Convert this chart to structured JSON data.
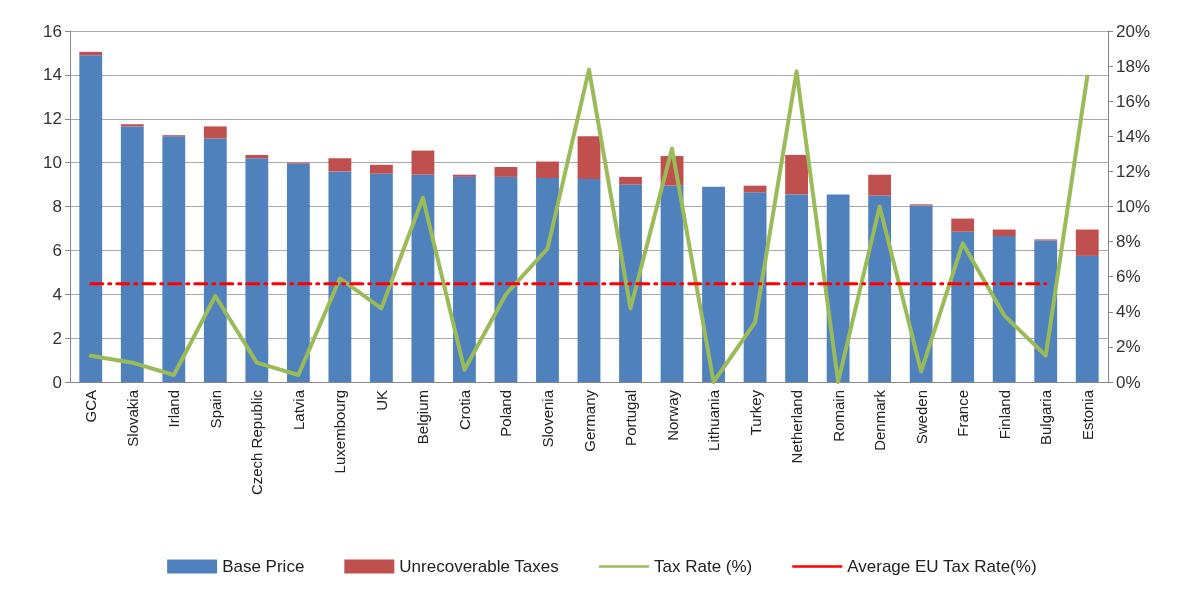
{
  "chart_data": {
    "type": "bar",
    "stacked": true,
    "categories": [
      "GCA",
      "Slovakia",
      "Irland",
      "Spain",
      "Czech Republic",
      "Latvia",
      "Luxembourg",
      "UK",
      "Belgium",
      "Crotia",
      "Poland",
      "Slovenia",
      "Germany",
      "Portugal",
      "Norway",
      "Lithuania",
      "Turkey",
      "Netherland",
      "Romain",
      "Denmark",
      "Sweden",
      "France",
      "Finland",
      "Bulgaria",
      "Estonia"
    ],
    "series": [
      {
        "name": "Base Price",
        "color": "#4f81bd",
        "values": [
          14.9,
          11.65,
          11.2,
          11.1,
          10.2,
          9.95,
          9.6,
          9.5,
          9.45,
          9.35,
          9.35,
          9.3,
          9.25,
          9.0,
          8.95,
          8.9,
          8.65,
          8.55,
          8.55,
          8.5,
          8.05,
          6.85,
          6.65,
          6.45,
          5.75
        ]
      },
      {
        "name": "Unrecoverable Taxes",
        "color": "#c0504d",
        "values": [
          0.15,
          0.1,
          0.05,
          0.55,
          0.15,
          0.05,
          0.6,
          0.4,
          1.1,
          0.1,
          0.45,
          0.75,
          1.95,
          0.35,
          1.35,
          0,
          0.3,
          1.8,
          0,
          0.95,
          0.05,
          0.6,
          0.3,
          0.05,
          1.2
        ]
      },
      {
        "name": "Tax Rate (%)",
        "type": "line",
        "axis": "y2",
        "color": "#9bbb59",
        "line_style": "solid",
        "values": [
          1.5,
          1.1,
          0.4,
          4.9,
          1.1,
          0.4,
          5.9,
          4.2,
          10.5,
          0.7,
          5.0,
          7.6,
          17.8,
          4.2,
          13.3,
          0,
          3.4,
          17.7,
          0,
          10.0,
          0.6,
          7.9,
          3.8,
          1.5,
          17.4
        ]
      },
      {
        "name": "Average EU Tax Rate(%)",
        "type": "line",
        "axis": "y2",
        "color": "#ff0000",
        "line_style": "dashed",
        "values": [
          5.6,
          5.6,
          5.6,
          5.6,
          5.6,
          5.6,
          5.6,
          5.6,
          5.6,
          5.6,
          5.6,
          5.6,
          5.6,
          5.6,
          5.6,
          5.6,
          5.6,
          5.6,
          5.6,
          5.6,
          5.6,
          5.6,
          5.6,
          5.6,
          null
        ]
      }
    ],
    "ylim": [
      0,
      16
    ],
    "yticks": [
      0,
      2,
      4,
      6,
      8,
      10,
      12,
      14,
      16
    ],
    "y2lim": [
      0,
      20
    ],
    "y2ticks": [
      {
        "value": 0,
        "label": "0%"
      },
      {
        "value": 2,
        "label": "2%"
      },
      {
        "value": 4,
        "label": "4%"
      },
      {
        "value": 6,
        "label": "6%"
      },
      {
        "value": 8,
        "label": "8%"
      },
      {
        "value": 10,
        "label": "10%"
      },
      {
        "value": 12,
        "label": "12%"
      },
      {
        "value": 14,
        "label": "14%"
      },
      {
        "value": 16,
        "label": "16%"
      },
      {
        "value": 18,
        "label": "18%"
      },
      {
        "value": 20,
        "label": "20%"
      }
    ],
    "grid": "y",
    "legend": "bottom",
    "marker": "none"
  }
}
